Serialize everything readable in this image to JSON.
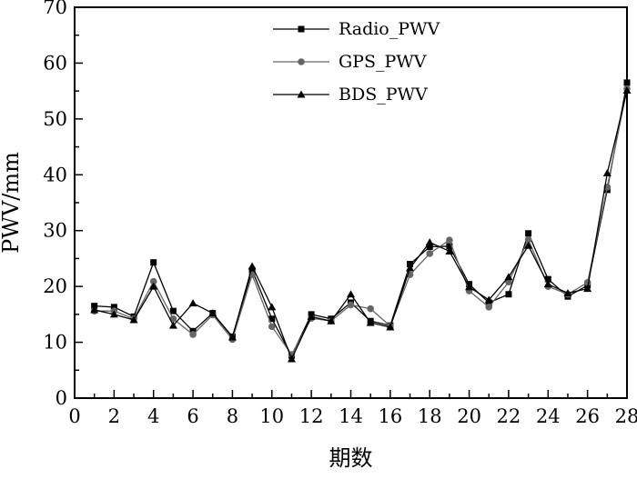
{
  "chart_data": {
    "type": "line",
    "xlabel": "期数",
    "ylabel": "PWV/mm",
    "xlim": [
      0,
      28
    ],
    "ylim": [
      0,
      70
    ],
    "x_ticks": [
      0,
      2,
      4,
      6,
      8,
      10,
      12,
      14,
      16,
      18,
      20,
      22,
      24,
      26,
      28
    ],
    "y_ticks": [
      0,
      10,
      20,
      30,
      40,
      50,
      60,
      70
    ],
    "grid": false,
    "legend_position": "top-center",
    "x": [
      1,
      2,
      3,
      4,
      5,
      6,
      7,
      8,
      9,
      10,
      11,
      12,
      13,
      14,
      15,
      16,
      17,
      18,
      19,
      20,
      21,
      22,
      23,
      24,
      25,
      26,
      27,
      28
    ],
    "series": [
      {
        "name": "Radio_PWV",
        "marker": "square",
        "color": "#000000",
        "values": [
          16.5,
          16.3,
          14.6,
          24.3,
          15.6,
          12.0,
          15.2,
          11.0,
          22.9,
          14.2,
          7.6,
          15.0,
          14.2,
          17.1,
          13.8,
          13.0,
          24.0,
          27.1,
          27.2,
          20.4,
          17.1,
          18.6,
          29.5,
          21.3,
          18.2,
          20.2,
          37.3,
          56.5
        ]
      },
      {
        "name": "GPS_PWV",
        "marker": "circle",
        "color": "#666666",
        "values": [
          15.6,
          15.6,
          14.2,
          20.9,
          14.2,
          11.4,
          14.9,
          10.5,
          22.1,
          12.8,
          7.8,
          14.3,
          13.8,
          16.7,
          16.0,
          12.9,
          22.1,
          25.9,
          28.3,
          19.2,
          16.3,
          20.8,
          28.4,
          20.0,
          18.6,
          20.7,
          37.8,
          55.4
        ]
      },
      {
        "name": "BDS_PWV",
        "marker": "triangle",
        "color": "#000000",
        "values": [
          15.8,
          15.0,
          14.0,
          20.0,
          13.0,
          17.0,
          15.2,
          10.9,
          23.6,
          16.3,
          7.0,
          14.6,
          13.8,
          18.6,
          13.5,
          12.7,
          23.3,
          27.9,
          26.3,
          19.9,
          17.6,
          21.7,
          27.3,
          20.4,
          18.8,
          19.6,
          40.3,
          55.1
        ]
      }
    ]
  }
}
